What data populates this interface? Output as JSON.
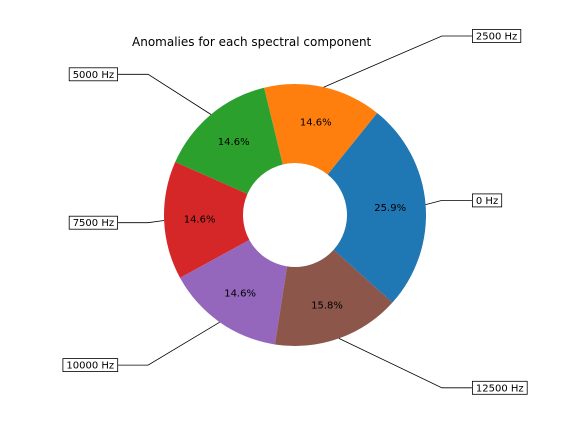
{
  "chart_data": {
    "type": "pie",
    "donut": true,
    "title": "Anomalies for each spectral component",
    "categories": [
      "0 Hz",
      "2500 Hz",
      "5000 Hz",
      "7500 Hz",
      "10000 Hz",
      "12500 Hz"
    ],
    "values": [
      25.9,
      14.6,
      14.6,
      14.6,
      14.6,
      15.8
    ],
    "percent_labels": [
      "25.9%",
      "14.6%",
      "14.6%",
      "14.6%",
      "14.6%",
      "15.8%"
    ],
    "colors": [
      "#1f77b4",
      "#ff7f0e",
      "#2ca02c",
      "#d62728",
      "#9467bd",
      "#8c564b"
    ],
    "drawing_order": [
      0,
      1,
      2,
      3,
      4,
      5
    ],
    "direction": "counterclockwise",
    "grid": false,
    "legend": "none"
  }
}
